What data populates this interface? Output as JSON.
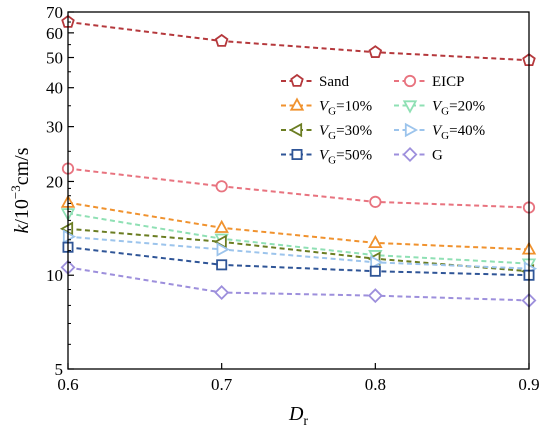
{
  "chart_data": {
    "type": "line",
    "xlabel": {
      "main": "D",
      "sub": "r"
    },
    "ylabel": {
      "main": "k",
      "mid": "/10",
      "sup": "−3",
      "unit": "cm/s"
    },
    "yscale": "log",
    "xlim": [
      0.6,
      0.9
    ],
    "ylim": [
      5,
      70
    ],
    "x": [
      0.6,
      0.7,
      0.8,
      0.9
    ],
    "xticks": [
      "0.6",
      "0.7",
      "0.8",
      "0.9"
    ],
    "yticks": [
      {
        "value": 5,
        "label": "5"
      },
      {
        "value": 10,
        "label": "10"
      },
      {
        "value": 20,
        "label": "20"
      },
      {
        "value": 30,
        "label": "30"
      },
      {
        "value": 40,
        "label": "40"
      },
      {
        "value": 50,
        "label": "50"
      },
      {
        "value": 60,
        "label": "60"
      },
      {
        "value": 70,
        "label": "70"
      }
    ],
    "grid": false,
    "legend_position": "top-right",
    "series": [
      {
        "name": "Sand",
        "label": {
          "main": "Sand"
        },
        "marker": "pentagon",
        "color": "#b5383c",
        "values": [
          65,
          56.5,
          52,
          49
        ]
      },
      {
        "name": "EICP",
        "label": {
          "main": "EICP"
        },
        "marker": "circle",
        "color": "#e8737f",
        "values": [
          22,
          19.3,
          17.2,
          16.5
        ]
      },
      {
        "name": "VG=10%",
        "label": {
          "main": "V",
          "sub": "G",
          "tail": "=10%"
        },
        "marker": "triangle-up",
        "color": "#f0922e",
        "values": [
          17.1,
          14.2,
          12.7,
          12.1
        ]
      },
      {
        "name": "VG=20%",
        "label": {
          "main": "V",
          "sub": "G",
          "tail": "=20%"
        },
        "marker": "triangle-down",
        "color": "#8fe0b4",
        "values": [
          15.8,
          13.1,
          11.6,
          10.9
        ]
      },
      {
        "name": "VG=30%",
        "label": {
          "main": "V",
          "sub": "G",
          "tail": "=30%"
        },
        "marker": "triangle-left",
        "color": "#6b7d22",
        "values": [
          14.1,
          12.8,
          11.3,
          10.3
        ]
      },
      {
        "name": "VG=40%",
        "label": {
          "main": "V",
          "sub": "G",
          "tail": "=40%"
        },
        "marker": "triangle-right",
        "color": "#9cc4ec",
        "values": [
          13.3,
          12.1,
          11.0,
          10.5
        ]
      },
      {
        "name": "VG=50%",
        "label": {
          "main": "V",
          "sub": "G",
          "tail": "=50%"
        },
        "marker": "square",
        "color": "#2f5597",
        "values": [
          12.3,
          10.8,
          10.3,
          10.0
        ]
      },
      {
        "name": "G",
        "label": {
          "main": "G"
        },
        "marker": "diamond",
        "color": "#9d8fdc",
        "values": [
          10.6,
          8.8,
          8.6,
          8.3
        ]
      }
    ]
  }
}
